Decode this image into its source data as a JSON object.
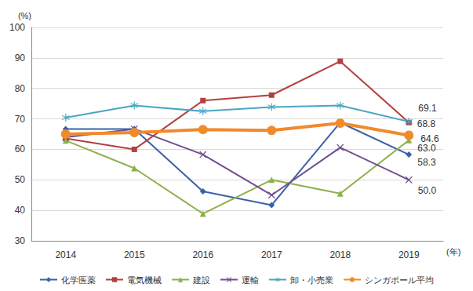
{
  "chart_data": {
    "type": "line",
    "y_label": "(%)",
    "x_label": "(年)",
    "categories": [
      "2014",
      "2015",
      "2016",
      "2017",
      "2018",
      "2019"
    ],
    "ylim": [
      30,
      100
    ],
    "yticks": [
      30,
      40,
      50,
      60,
      70,
      80,
      90,
      100
    ],
    "grid": true,
    "legend": "bottom",
    "data_labels": true,
    "series": [
      {
        "name": "化学医薬",
        "color": "#3a62a7",
        "marker": "diamond",
        "line_style": "solid",
        "values": [
          66.7,
          66.7,
          46.2,
          41.7,
          68.8,
          58.3
        ],
        "value_labels": [
          null,
          null,
          null,
          null,
          null,
          "58.3"
        ]
      },
      {
        "name": "電気機械",
        "color": "#b3403f",
        "marker": "square",
        "line_style": "solid",
        "values": [
          63.6,
          60.0,
          76.0,
          77.8,
          88.9,
          68.8
        ],
        "value_labels": [
          null,
          null,
          null,
          null,
          null,
          "68.8"
        ]
      },
      {
        "name": "建設",
        "color": "#8db04b",
        "marker": "triangle",
        "line_style": "solid",
        "values": [
          62.9,
          53.8,
          38.9,
          50.0,
          45.5,
          63.0
        ],
        "value_labels": [
          null,
          null,
          null,
          null,
          null,
          "63.0"
        ]
      },
      {
        "name": "運輸",
        "color": "#6e4e8e",
        "marker": "x",
        "line_style": "solid",
        "values": [
          64.0,
          66.7,
          58.3,
          45.0,
          60.6,
          50.0
        ],
        "value_labels": [
          null,
          null,
          null,
          null,
          null,
          "50.0"
        ]
      },
      {
        "name": "卸・小売業",
        "color": "#48a7c3",
        "marker": "star",
        "line_style": "solid",
        "values": [
          70.4,
          74.4,
          72.5,
          73.9,
          74.4,
          69.1
        ],
        "value_labels": [
          null,
          null,
          null,
          null,
          null,
          "69.1"
        ]
      },
      {
        "name": "シンガポール平均",
        "color": "#f08a2b",
        "marker": "circle",
        "line_style": "bold",
        "values": [
          65.0,
          65.5,
          66.5,
          66.2,
          68.6,
          64.6
        ],
        "value_labels": [
          null,
          null,
          null,
          null,
          null,
          "64.6"
        ]
      }
    ]
  }
}
